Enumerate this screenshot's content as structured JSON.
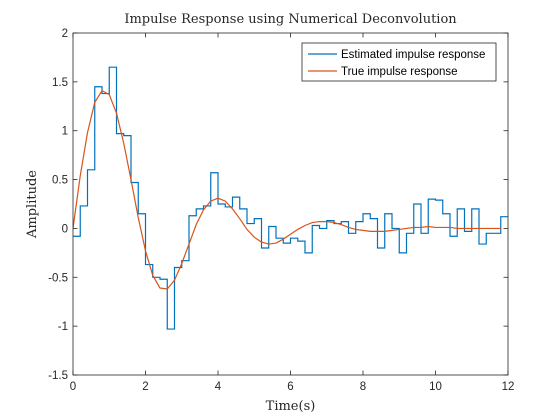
{
  "chart_data": {
    "type": "line",
    "title": "Impulse Response using Numerical Deconvolution",
    "xlabel": "Time(s)",
    "ylabel": "Amplitude",
    "xlim": [
      0,
      12
    ],
    "ylim": [
      -1.5,
      2
    ],
    "xticks": [
      0,
      2,
      4,
      6,
      8,
      10,
      12
    ],
    "yticks": [
      -1.5,
      -1,
      -0.5,
      0,
      0.5,
      1,
      1.5,
      2
    ],
    "xtick_labels": [
      "0",
      "2",
      "4",
      "6",
      "8",
      "10",
      "12"
    ],
    "ytick_labels": [
      "-1.5",
      "-1",
      "-0.5",
      "0",
      "0.5",
      "1",
      "1.5",
      "2"
    ],
    "grid": false,
    "legend_position": "top-right",
    "series": [
      {
        "name": "Estimated impulse response",
        "style": "stairs",
        "color": "#0072BD",
        "x": [
          0,
          0.2,
          0.4,
          0.6,
          0.8,
          1.0,
          1.2,
          1.4,
          1.6,
          1.8,
          2.0,
          2.2,
          2.4,
          2.6,
          2.8,
          3.0,
          3.2,
          3.4,
          3.6,
          3.8,
          4.0,
          4.2,
          4.4,
          4.6,
          4.8,
          5.0,
          5.2,
          5.4,
          5.6,
          5.8,
          6.0,
          6.2,
          6.4,
          6.6,
          6.8,
          7.0,
          7.2,
          7.4,
          7.6,
          7.8,
          8.0,
          8.2,
          8.4,
          8.6,
          8.8,
          9.0,
          9.2,
          9.4,
          9.6,
          9.8,
          10.0,
          10.2,
          10.4,
          10.6,
          10.8,
          11.0,
          11.2,
          11.4,
          11.6,
          11.8
        ],
        "values": [
          -0.08,
          0.23,
          0.6,
          1.45,
          1.38,
          1.65,
          0.97,
          0.95,
          0.47,
          0.15,
          -0.37,
          -0.5,
          -0.52,
          -1.03,
          -0.4,
          -0.33,
          0.13,
          0.2,
          0.23,
          0.57,
          0.25,
          0.22,
          0.32,
          0.2,
          0.05,
          0.1,
          -0.2,
          0.02,
          -0.1,
          -0.15,
          -0.1,
          -0.13,
          -0.25,
          0.03,
          0.0,
          0.08,
          0.05,
          0.07,
          -0.05,
          0.07,
          0.15,
          0.1,
          -0.2,
          0.15,
          0.0,
          -0.25,
          -0.05,
          0.25,
          -0.05,
          0.3,
          0.29,
          0.15,
          -0.08,
          0.2,
          -0.03,
          0.2,
          -0.16,
          -0.05,
          -0.05,
          0.12
        ]
      },
      {
        "name": "True impulse response",
        "style": "line",
        "color": "#D95319",
        "x": [
          0,
          0.2,
          0.4,
          0.6,
          0.8,
          1.0,
          1.2,
          1.4,
          1.6,
          1.8,
          2.0,
          2.2,
          2.4,
          2.6,
          2.8,
          3.0,
          3.2,
          3.4,
          3.6,
          3.8,
          4.0,
          4.2,
          4.4,
          4.6,
          4.8,
          5.0,
          5.2,
          5.4,
          5.6,
          5.8,
          6.0,
          6.2,
          6.4,
          6.6,
          6.8,
          7.0,
          7.2,
          7.4,
          7.6,
          7.8,
          8.0,
          8.2,
          8.4,
          8.6,
          8.8,
          9.0,
          9.2,
          9.4,
          9.6,
          9.8,
          10.0,
          10.2,
          10.4,
          10.6,
          10.8,
          11.0,
          11.2,
          11.4,
          11.6,
          11.8
        ],
        "values": [
          0.0,
          0.54,
          0.98,
          1.29,
          1.41,
          1.37,
          1.18,
          0.87,
          0.5,
          0.11,
          -0.23,
          -0.48,
          -0.61,
          -0.62,
          -0.53,
          -0.36,
          -0.16,
          0.04,
          0.19,
          0.28,
          0.31,
          0.28,
          0.2,
          0.1,
          -0.01,
          -0.09,
          -0.14,
          -0.16,
          -0.15,
          -0.11,
          -0.06,
          -0.01,
          0.03,
          0.06,
          0.07,
          0.07,
          0.06,
          0.04,
          0.01,
          -0.01,
          -0.02,
          -0.03,
          -0.03,
          -0.03,
          -0.02,
          -0.01,
          0.0,
          0.01,
          0.01,
          0.02,
          0.01,
          0.01,
          0.01,
          0.0,
          0.0,
          0.0,
          0.0,
          0.0,
          0.0,
          0.0
        ]
      }
    ]
  }
}
